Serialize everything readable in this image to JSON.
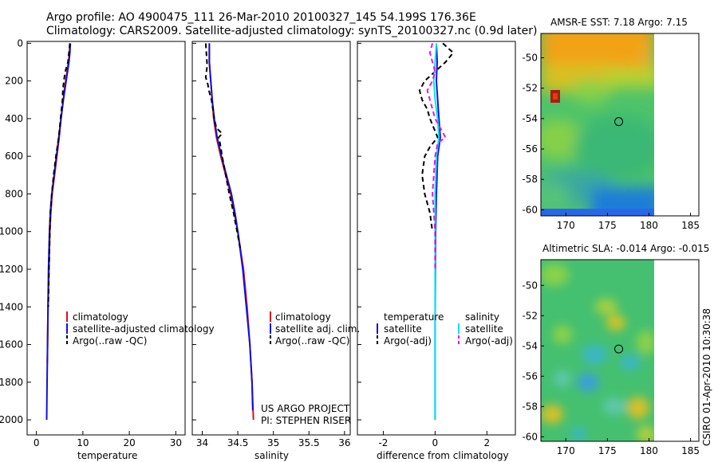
{
  "header": {
    "line1": "Argo profile: AO 4900475_111 26-Mar-2010 20100327_145 54.199S 176.36E",
    "line2": "Climatology: CARS2009. Satellite-adjusted climatology: synTS_20100327.nc (0.9d later)"
  },
  "credit": {
    "project": "US ARGO PROJECT",
    "pi": "PI: STEPHEN RISER",
    "stamp": "CSIRO 01-Apr-2010 10:30:38"
  },
  "colors": {
    "climatology": "#dd1111",
    "satellite": "#1111dd",
    "argo": "#000000",
    "salinity_satellite": "#00e5ee",
    "salinity_argo": "#ee11ee"
  },
  "chart_data": [
    {
      "type": "line",
      "id": "temperature",
      "xlabel": "temperature",
      "ylabel": "",
      "xlim": [
        -2,
        32
      ],
      "ylim": [
        2080,
        -10
      ],
      "xticks": [
        0,
        10,
        20,
        30
      ],
      "yticks": [
        0,
        200,
        400,
        600,
        800,
        1000,
        1200,
        1400,
        1600,
        1800,
        2000
      ],
      "series": [
        {
          "name": "climatology",
          "style": "solid",
          "color": "#dd1111",
          "depth": [
            0,
            50,
            100,
            150,
            200,
            250,
            300,
            400,
            500,
            600,
            700,
            800,
            900,
            1000,
            1200,
            1400,
            1600,
            1700
          ],
          "values": [
            7.2,
            7.1,
            6.9,
            6.6,
            6.3,
            6.0,
            5.8,
            5.3,
            4.9,
            4.4,
            3.9,
            3.4,
            3.1,
            2.9,
            2.7,
            2.5,
            2.4,
            2.35
          ]
        },
        {
          "name": "satellite-adjusted climatology",
          "style": "solid",
          "color": "#1111dd",
          "depth": [
            0,
            50,
            100,
            150,
            200,
            250,
            300,
            400,
            500,
            600,
            700,
            800,
            900,
            1000,
            1200,
            1400,
            1600,
            1800,
            2000
          ],
          "values": [
            7.3,
            7.2,
            7.0,
            6.7,
            6.4,
            6.1,
            5.8,
            5.3,
            4.8,
            4.3,
            3.8,
            3.3,
            3.0,
            2.8,
            2.6,
            2.5,
            2.4,
            2.3,
            2.2
          ]
        },
        {
          "name": "Argo(..raw -QC)",
          "style": "dash",
          "color": "#000000",
          "depth": [
            0,
            50,
            100,
            150,
            200,
            250,
            300,
            350,
            400,
            450,
            500,
            600,
            700,
            800,
            900,
            1000,
            1200,
            1400
          ],
          "values": [
            7.2,
            7.0,
            6.8,
            6.2,
            5.9,
            5.7,
            5.6,
            5.4,
            5.2,
            5.0,
            4.8,
            4.2,
            3.7,
            3.3,
            3.0,
            2.9,
            2.7,
            2.55
          ]
        }
      ],
      "legend": [
        "climatology",
        "satellite-adjusted climatology",
        "Argo(..raw -QC)"
      ]
    },
    {
      "type": "line",
      "id": "salinity",
      "xlabel": "salinity",
      "ylabel": "",
      "xlim": [
        33.86,
        36.08
      ],
      "ylim": [
        2080,
        -10
      ],
      "xticks": [
        34,
        34.5,
        35,
        35.5,
        36
      ],
      "series": [
        {
          "name": "climatology",
          "style": "solid",
          "color": "#dd1111",
          "depth": [
            0,
            100,
            200,
            300,
            400,
            500,
            600,
            700,
            800,
            900,
            1000,
            1200,
            1400,
            1600,
            1800,
            2000
          ],
          "values": [
            34.1,
            34.1,
            34.12,
            34.14,
            34.16,
            34.2,
            34.26,
            34.33,
            34.4,
            34.45,
            34.5,
            34.58,
            34.63,
            34.67,
            34.7,
            34.72
          ]
        },
        {
          "name": "satellite adj. clim.",
          "style": "solid",
          "color": "#1111dd",
          "depth": [
            0,
            100,
            200,
            300,
            400,
            500,
            600,
            700,
            800,
            900,
            1000,
            1200,
            1400,
            1600,
            1800,
            1950
          ],
          "values": [
            34.1,
            34.1,
            34.12,
            34.14,
            34.17,
            34.21,
            34.27,
            34.34,
            34.41,
            34.46,
            34.5,
            34.57,
            34.62,
            34.67,
            34.7,
            34.71
          ]
        },
        {
          "name": "Argo(..raw -QC)",
          "style": "dash",
          "color": "#000000",
          "depth": [
            0,
            60,
            120,
            180,
            220,
            260,
            300,
            350,
            400,
            450,
            480,
            500,
            530,
            600,
            700,
            800,
            900,
            1000,
            1100
          ],
          "values": [
            34.05,
            34.06,
            34.07,
            34.05,
            34.08,
            34.1,
            34.13,
            34.15,
            34.17,
            34.2,
            34.28,
            34.23,
            34.25,
            34.28,
            34.33,
            34.38,
            34.44,
            34.49,
            34.54
          ]
        }
      ],
      "legend": [
        "climatology",
        "satellite adj. clim.",
        "Argo(..raw -QC)"
      ]
    },
    {
      "type": "line",
      "id": "difference",
      "xlabel": "difference from climatology",
      "ylabel": "",
      "xlim": [
        -3,
        3.1
      ],
      "ylim": [
        2080,
        -10
      ],
      "xticks": [
        -2,
        0,
        2
      ],
      "series": [
        {
          "name": "temperature satellite",
          "style": "solid",
          "color": "#1111dd",
          "depth": [
            0,
            100,
            200,
            300,
            400,
            500,
            600,
            800,
            1000,
            1500,
            2000
          ],
          "values": [
            0.05,
            0.08,
            0.05,
            0.1,
            0.15,
            0.2,
            0.1,
            0.05,
            0.02,
            0.0,
            0.0
          ]
        },
        {
          "name": "temperature Argo(-adj)",
          "style": "dash",
          "color": "#000000",
          "depth": [
            0,
            50,
            100,
            150,
            200,
            250,
            300,
            350,
            400,
            500,
            550,
            600,
            700,
            800,
            900,
            1000
          ],
          "values": [
            0.3,
            0.7,
            0.4,
            0.0,
            -0.4,
            -0.6,
            -0.5,
            -0.3,
            -0.2,
            0.1,
            -0.2,
            -0.4,
            -0.5,
            -0.4,
            -0.2,
            -0.1
          ]
        },
        {
          "name": "salinity satellite",
          "style": "solid",
          "color": "#00e5ee",
          "depth": [
            0,
            100,
            200,
            300,
            400,
            500,
            600,
            800,
            1000,
            1500,
            2000
          ],
          "values": [
            0.05,
            0.0,
            -0.05,
            0.0,
            0.1,
            0.15,
            0.05,
            0.0,
            0.0,
            0.0,
            0.0
          ]
        },
        {
          "name": "salinity Argo(-adj)",
          "style": "dash",
          "color": "#ee11ee",
          "depth": [
            0,
            50,
            100,
            150,
            200,
            250,
            300,
            400,
            450,
            500,
            530,
            600,
            800,
            1000,
            1200
          ],
          "values": [
            -0.1,
            -0.2,
            -0.1,
            0.0,
            -0.1,
            -0.3,
            -0.2,
            0.0,
            0.2,
            0.4,
            0.1,
            0.0,
            -0.1,
            0.0,
            0.0
          ]
        }
      ],
      "legend_groups": [
        {
          "title": "temperature",
          "entries": [
            "satellite",
            "Argo(-adj)"
          ]
        },
        {
          "title": "salinity",
          "entries": [
            "satellite",
            "Argo(-adj)"
          ]
        }
      ]
    },
    {
      "type": "heatmap",
      "id": "sst_map",
      "title": "AMSR-E SST: 7.18 Argo: 7.15",
      "xlim": [
        167,
        186
      ],
      "ylim": [
        -60.4,
        -48.4
      ],
      "xticks": [
        170,
        175,
        180,
        185
      ],
      "yticks": [
        -50,
        -52,
        -54,
        -56,
        -58,
        -60
      ],
      "data_extent_lon": [
        167.5,
        180.3
      ],
      "profile_lon": 176.36,
      "profile_lat": -54.2
    },
    {
      "type": "heatmap",
      "id": "sla_map",
      "title": "Altimetric SLA: -0.014 Argo: -0.015",
      "xlim": [
        167,
        186
      ],
      "ylim": [
        -60.3,
        -48.3
      ],
      "xticks": [
        170,
        175,
        180,
        185
      ],
      "yticks": [
        -50,
        -52,
        -54,
        -56,
        -58,
        -60
      ],
      "data_extent_lon": [
        167.5,
        180.3
      ],
      "profile_lon": 176.36,
      "profile_lat": -54.2
    }
  ]
}
